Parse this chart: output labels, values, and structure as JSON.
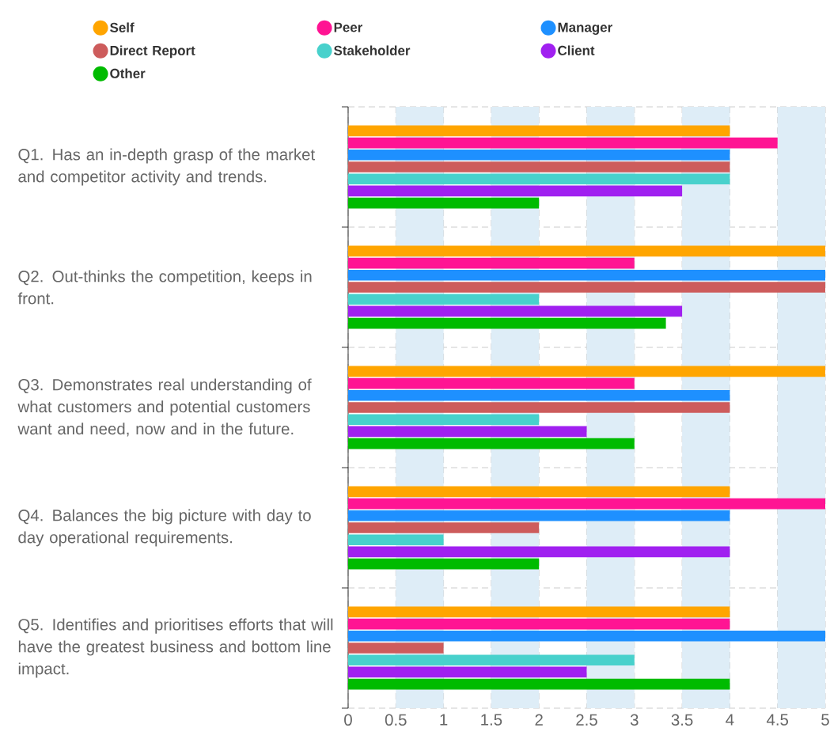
{
  "chart_data": {
    "type": "bar",
    "orientation": "horizontal",
    "categories": [
      "Q1. Has an in-depth grasp of the market and competitor activity and trends.",
      "Q2. Out-thinks the competition, keeps in front.",
      "Q3. Demonstrates real understanding of what customers and potential customers want and need, now and in the future.",
      "Q4. Balances the big picture with day to day operational requirements.",
      "Q5. Identifies and prioritises efforts that will have the greatest business and bottom line impact."
    ],
    "series": [
      {
        "name": "Self",
        "color": "#ffa500",
        "values": [
          4,
          5,
          5,
          4,
          4
        ]
      },
      {
        "name": "Peer",
        "color": "#ff1493",
        "values": [
          4.5,
          3,
          3,
          5,
          4
        ]
      },
      {
        "name": "Manager",
        "color": "#1e90ff",
        "values": [
          4,
          5,
          4,
          4,
          5
        ]
      },
      {
        "name": "Direct Report",
        "color": "#cd5c5c",
        "values": [
          4,
          5,
          4,
          2,
          1
        ]
      },
      {
        "name": "Stakeholder",
        "color": "#48d1cc",
        "values": [
          4,
          2,
          2,
          1,
          3
        ]
      },
      {
        "name": "Client",
        "color": "#a020f0",
        "values": [
          3.5,
          3.5,
          2.5,
          4,
          2.5
        ]
      },
      {
        "name": "Other",
        "color": "#00bb00",
        "values": [
          2,
          3.33,
          3,
          2,
          4
        ]
      }
    ],
    "xlim": [
      0,
      5
    ],
    "xticks": [
      0,
      0.5,
      1,
      1.5,
      2,
      2.5,
      3,
      3.5,
      4,
      4.5,
      5
    ],
    "bands": [
      {
        "axis": "x",
        "from": 0.5,
        "to": 1,
        "color": "#deedf7"
      },
      {
        "axis": "x",
        "from": 1.5,
        "to": 2,
        "color": "#deedf7"
      },
      {
        "axis": "x",
        "from": 2.5,
        "to": 3,
        "color": "#deedf7"
      },
      {
        "axis": "x",
        "from": 3.5,
        "to": 4,
        "color": "#deedf7"
      },
      {
        "axis": "x",
        "from": 4.5,
        "to": 5,
        "color": "#deedf7"
      }
    ],
    "grid": true,
    "legend": "top"
  }
}
